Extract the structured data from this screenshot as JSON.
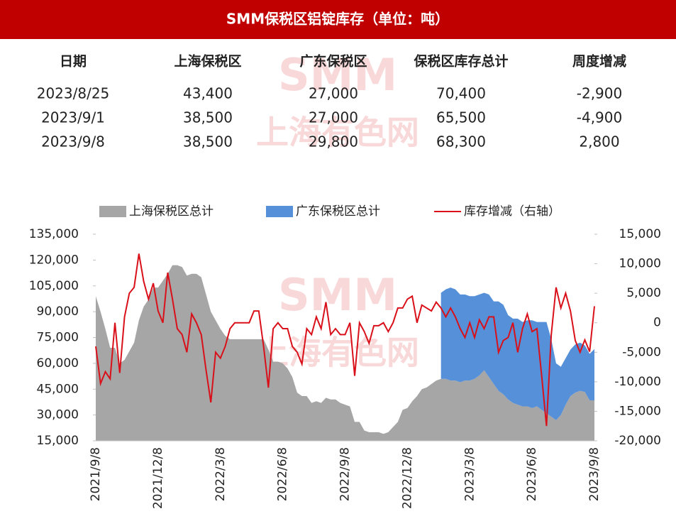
{
  "header": {
    "title": "SMM保税区铝锭库存（单位：吨）"
  },
  "watermark": [
    "SMM",
    "上海有色网"
  ],
  "table": {
    "columns": [
      "日期",
      "上海保税区",
      "广东保税区",
      "保税区库存总计",
      "周度增减"
    ],
    "rows": [
      [
        "2023/8/25",
        "43,400",
        "27,000",
        "70,400",
        "-2,900"
      ],
      [
        "2023/9/1",
        "38,500",
        "27,000",
        "65,500",
        "-4,900"
      ],
      [
        "2023/9/8",
        "38,500",
        "29,800",
        "68,300",
        "2,800"
      ]
    ]
  },
  "chart_data": {
    "type": "stacked-area-line",
    "categories": [
      "2021/9/8",
      null,
      null,
      null,
      null,
      null,
      null,
      null,
      null,
      null,
      null,
      null,
      null,
      "2021/12/8",
      null,
      null,
      null,
      null,
      null,
      null,
      null,
      null,
      null,
      null,
      null,
      null,
      "2022/3/8",
      null,
      null,
      null,
      null,
      null,
      null,
      null,
      null,
      null,
      null,
      null,
      null,
      "2022/6/8",
      null,
      null,
      null,
      null,
      null,
      null,
      null,
      null,
      null,
      null,
      null,
      null,
      "2022/9/8",
      null,
      null,
      null,
      null,
      null,
      null,
      null,
      null,
      null,
      null,
      null,
      null,
      "2022/12/8",
      null,
      null,
      null,
      null,
      null,
      null,
      null,
      null,
      null,
      null,
      null,
      null,
      "2023/3/8",
      null,
      null,
      null,
      null,
      null,
      null,
      null,
      null,
      null,
      null,
      null,
      null,
      "2023/6/8",
      null,
      null,
      null,
      null,
      null,
      null,
      null,
      null,
      null,
      null,
      null,
      null,
      "2023/9/8"
    ],
    "series": [
      {
        "name": "上海保税区总计",
        "color": "#a6a6a6",
        "kind": "area",
        "values": [
          99000,
          90000,
          80000,
          69000,
          69000,
          60000,
          62000,
          67000,
          72000,
          85000,
          93000,
          97000,
          104000,
          104000,
          108000,
          112000,
          117000,
          117000,
          116000,
          111000,
          112000,
          112000,
          110000,
          100000,
          90000,
          85000,
          80000,
          76000,
          74000,
          74000,
          74000,
          74000,
          74000,
          74000,
          74000,
          74000,
          68000,
          61000,
          61000,
          60000,
          57000,
          52000,
          43000,
          41000,
          41000,
          37000,
          38000,
          37000,
          40000,
          39000,
          39000,
          37000,
          36000,
          35000,
          26000,
          26000,
          21000,
          20000,
          20000,
          20000,
          19000,
          20000,
          23000,
          26000,
          33000,
          34000,
          38000,
          41000,
          45000,
          46000,
          48000,
          50000,
          51000,
          51000,
          50000,
          50000,
          49000,
          50000,
          50000,
          51000,
          53000,
          56000,
          52000,
          48000,
          44000,
          42000,
          39000,
          37000,
          36000,
          35000,
          35000,
          34000,
          35000,
          33000,
          31000,
          29000,
          27000,
          30000,
          36000,
          41000,
          43000,
          44000,
          43400,
          38500,
          38500
        ]
      },
      {
        "name": "广东保税区总计",
        "color": "#5590d9",
        "kind": "area",
        "values": [
          null,
          null,
          null,
          null,
          null,
          null,
          null,
          null,
          null,
          null,
          null,
          null,
          null,
          null,
          null,
          null,
          null,
          null,
          null,
          null,
          null,
          null,
          null,
          null,
          null,
          null,
          null,
          null,
          null,
          null,
          null,
          null,
          null,
          null,
          null,
          null,
          null,
          null,
          null,
          null,
          null,
          null,
          null,
          null,
          null,
          null,
          null,
          null,
          null,
          null,
          null,
          null,
          null,
          null,
          null,
          null,
          null,
          null,
          null,
          null,
          null,
          null,
          null,
          null,
          null,
          null,
          null,
          null,
          null,
          null,
          null,
          null,
          50000,
          52000,
          54000,
          53000,
          51000,
          50000,
          49000,
          48000,
          47000,
          45000,
          48000,
          48000,
          52000,
          52000,
          49000,
          49000,
          50000,
          49000,
          50000,
          51000,
          49000,
          51000,
          53000,
          45000,
          33000,
          28000,
          27000,
          27000,
          28000,
          28000,
          27000,
          27000,
          29800
        ]
      },
      {
        "name": "库存增减（右轴）",
        "color": "#d9101a",
        "kind": "line",
        "axis": "y2",
        "values": [
          -4000,
          -10300,
          -8300,
          -9500,
          0,
          -8500,
          1000,
          5000,
          6000,
          11700,
          7000,
          4000,
          6700,
          2000,
          0,
          8500,
          4000,
          -1000,
          -2000,
          -5000,
          1500,
          0,
          -2000,
          -8000,
          -13500,
          -5000,
          -6000,
          -4000,
          -1000,
          0,
          0,
          0,
          0,
          2000,
          2000,
          -4000,
          -11000,
          -1000,
          0,
          -1000,
          -1000,
          -4000,
          -5000,
          -7000,
          -1000,
          -2000,
          1000,
          -1000,
          3500,
          -2000,
          -1000,
          -2000,
          -2000,
          0,
          -9000,
          0,
          -1500,
          -3500,
          -500,
          -500,
          0,
          -1500,
          0,
          2500,
          2500,
          4000,
          4500,
          0,
          3000,
          2500,
          2000,
          3500,
          2500,
          1000,
          2500,
          1000,
          -1000,
          -2500,
          0,
          -2500,
          500,
          -1000,
          1000,
          1000,
          -5000,
          -3000,
          -2500,
          0,
          -5000,
          -1000,
          1500,
          -1500,
          -1000,
          -9000,
          -17500,
          -2000,
          6000,
          2500,
          5000,
          2000,
          -3000,
          -5000,
          -2900,
          -4900,
          2800
        ]
      }
    ],
    "ylim": [
      15000,
      135000
    ],
    "yticks": [
      {
        "value": 15000,
        "label": "15,000"
      },
      {
        "value": 30000,
        "label": "30,000"
      },
      {
        "value": 45000,
        "label": "45,000"
      },
      {
        "value": 60000,
        "label": "60,000"
      },
      {
        "value": 75000,
        "label": "75,000"
      },
      {
        "value": 90000,
        "label": "90,000"
      },
      {
        "value": 105000,
        "label": "105,000"
      },
      {
        "value": 120000,
        "label": "120,000"
      },
      {
        "value": 135000,
        "label": "135,000"
      }
    ],
    "y2lim": [
      -20000,
      15000
    ],
    "y2ticks": [
      {
        "value": -20000,
        "label": "-20,000"
      },
      {
        "value": -15000,
        "label": "-15,000"
      },
      {
        "value": -10000,
        "label": "-10,000"
      },
      {
        "value": -5000,
        "label": "-5,000"
      },
      0,
      {
        "value": 5000,
        "label": "5,000"
      },
      {
        "value": 10000,
        "label": "10,000"
      },
      {
        "value": 15000,
        "label": "15,000"
      }
    ]
  }
}
